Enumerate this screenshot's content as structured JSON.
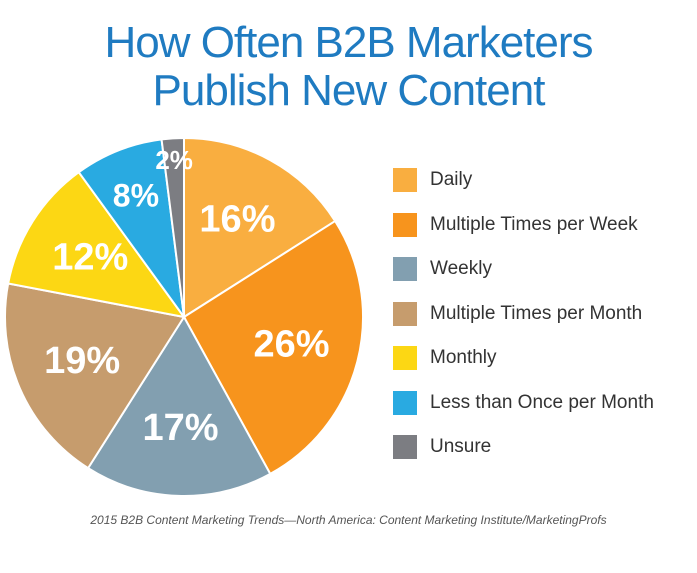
{
  "title_lines": [
    "How Often B2B Marketers",
    "Publish New Content"
  ],
  "source": "2015 B2B Content Marketing Trends—North America: Content Marketing Institute/MarketingProfs",
  "chart_data": {
    "type": "pie",
    "title": "How Often B2B Marketers Publish New Content",
    "unit": "%",
    "legend_position": "right",
    "slices": [
      {
        "label": "Daily",
        "value": 16,
        "display": "16%",
        "color": "#f9ae40"
      },
      {
        "label": "Multiple Times per Week",
        "value": 26,
        "display": "26%",
        "color": "#f7941d"
      },
      {
        "label": "Weekly",
        "value": 17,
        "display": "17%",
        "color": "#829fb0"
      },
      {
        "label": "Multiple Times per Month",
        "value": 19,
        "display": "19%",
        "color": "#c69c6d"
      },
      {
        "label": "Monthly",
        "value": 12,
        "display": "12%",
        "color": "#fcd714"
      },
      {
        "label": "Less than Once per Month",
        "value": 8,
        "display": "8%",
        "color": "#29aae1"
      },
      {
        "label": "Unsure",
        "value": 2,
        "display": "2%",
        "color": "#7c7d82"
      }
    ]
  }
}
